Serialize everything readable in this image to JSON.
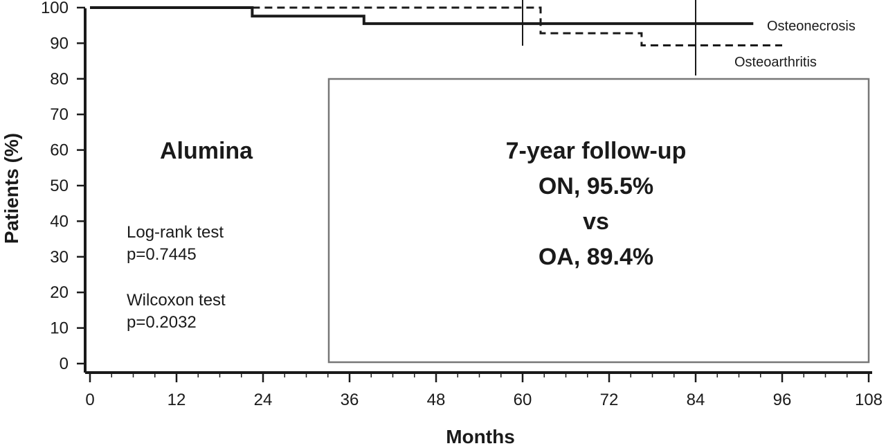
{
  "chart_data": {
    "type": "line",
    "title": "",
    "xlabel": "Months",
    "ylabel": "Patients (%)",
    "xlim": [
      0,
      108
    ],
    "ylim": [
      0,
      100
    ],
    "x_ticks": [
      0,
      12,
      24,
      36,
      48,
      60,
      72,
      84,
      96,
      108
    ],
    "x_tick_labels": [
      "0",
      "12",
      "24",
      "36",
      "48",
      "60",
      "72",
      "84",
      "96",
      "108"
    ],
    "y_ticks": [
      0,
      10,
      20,
      30,
      40,
      50,
      60,
      70,
      80,
      90,
      100
    ],
    "y_tick_labels": [
      "0",
      "10",
      "20",
      "30",
      "40",
      "50",
      "60",
      "70",
      "80",
      "90",
      "100"
    ],
    "step": true,
    "series": [
      {
        "name": "Osteonecrosis",
        "style": "solid",
        "color": "#1a1a1a",
        "x": [
          0,
          22.5,
          22.5,
          38,
          38,
          92
        ],
        "y": [
          100,
          100,
          97.6,
          97.6,
          95.5,
          95.5
        ],
        "censor_x": [
          84
        ]
      },
      {
        "name": "Osteoarthritis",
        "style": "dashed",
        "color": "#1a1a1a",
        "x": [
          22.5,
          60,
          62.5,
          62.5,
          76.5,
          76.5,
          96
        ],
        "y": [
          100,
          100,
          100,
          92.8,
          92.8,
          89.4,
          89.4
        ],
        "censor_x": [
          60
        ]
      }
    ],
    "annotations": {
      "panel_title": "Alumina",
      "logrank_label": "Log-rank test",
      "logrank_p": "p=0.7445",
      "wilcoxon_label": "Wilcoxon test",
      "wilcoxon_p": "p=0.2032",
      "box_lines": [
        "7-year follow-up",
        "ON, 95.5%",
        "vs",
        "OA, 89.4%"
      ]
    },
    "grid": false,
    "legend": "inline-labels"
  }
}
